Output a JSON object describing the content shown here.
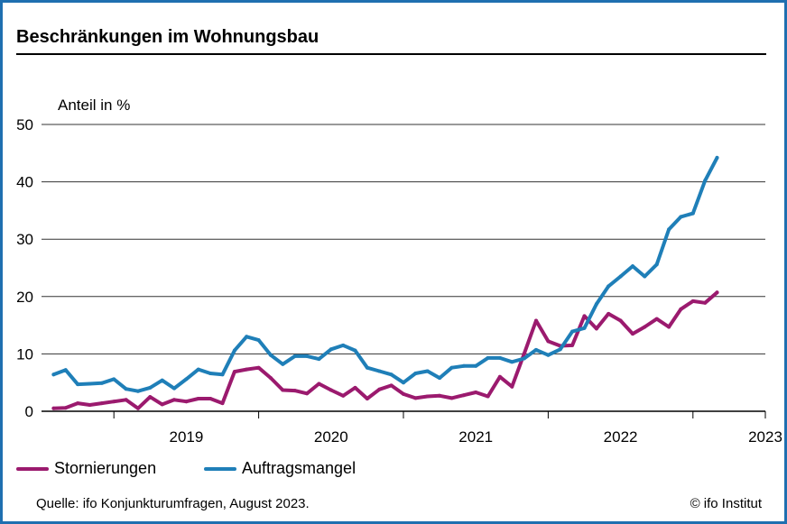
{
  "header": {
    "title": "Beschränkungen im Wohnungsbau"
  },
  "footer": {
    "source": "Quelle: ifo Konjunkturumfragen, August 2023.",
    "credit": "© ifo Institut"
  },
  "colors": {
    "Stornierungen": "#9b1a6e",
    "Auftragsmangel": "#1f7fb8",
    "frame": "#1f6fb0"
  },
  "chart_data": {
    "type": "line",
    "title": "Beschränkungen im Wohnungsbau",
    "ylabel": "Anteil in %",
    "ylim": [
      0,
      50
    ],
    "yticks": [
      "0",
      "10",
      "20",
      "30",
      "40",
      "50"
    ],
    "xlim": [
      "2018-07",
      "2023-07"
    ],
    "xticks": [
      "2019",
      "2020",
      "2021",
      "2022",
      "2023"
    ],
    "grid": true,
    "legend": "bottom-left",
    "x": [
      "2018-08",
      "2018-09",
      "2018-10",
      "2018-11",
      "2018-12",
      "2019-01",
      "2019-02",
      "2019-03",
      "2019-04",
      "2019-05",
      "2019-06",
      "2019-07",
      "2019-08",
      "2019-09",
      "2019-10",
      "2019-11",
      "2019-12",
      "2020-01",
      "2020-02",
      "2020-03",
      "2020-04",
      "2020-05",
      "2020-06",
      "2020-07",
      "2020-08",
      "2020-09",
      "2020-10",
      "2020-11",
      "2020-12",
      "2021-01",
      "2021-02",
      "2021-03",
      "2021-04",
      "2021-05",
      "2021-06",
      "2021-07",
      "2021-08",
      "2021-09",
      "2021-10",
      "2021-11",
      "2021-12",
      "2022-01",
      "2022-02",
      "2022-03",
      "2022-04",
      "2022-05",
      "2022-06",
      "2022-07",
      "2022-08",
      "2022-09",
      "2022-10",
      "2022-11",
      "2022-12",
      "2023-01",
      "2023-02",
      "2023-03",
      "2023-04",
      "2023-05",
      "2023-06",
      "2023-07"
    ],
    "series": [
      {
        "name": "Stornierungen",
        "values": [
          0.5,
          0.6,
          1.4,
          1.1,
          1.4,
          1.7,
          2.0,
          0.5,
          2.5,
          1.2,
          2.0,
          1.7,
          2.2,
          2.2,
          1.4,
          6.9,
          7.3,
          7.6,
          5.8,
          3.7,
          3.6,
          3.1,
          4.8,
          3.7,
          2.7,
          4.1,
          2.2,
          3.8,
          4.5,
          3.0,
          2.3,
          2.6,
          2.7,
          2.3,
          2.8,
          3.3,
          2.6,
          6.0,
          4.3,
          10.0,
          15.8,
          12.2,
          11.4,
          11.5,
          16.6,
          14.4,
          17.0,
          15.8,
          13.5,
          14.7,
          16.1,
          14.7,
          17.8,
          19.2,
          18.9,
          20.7,
          null,
          null,
          null,
          null
        ]
      },
      {
        "name": "Auftragsmangel",
        "values": [
          6.4,
          7.2,
          4.7,
          4.8,
          4.9,
          5.6,
          3.9,
          3.5,
          4.1,
          5.4,
          4.0,
          5.6,
          7.3,
          6.6,
          6.4,
          10.6,
          13.0,
          12.4,
          9.8,
          8.2,
          9.6,
          9.6,
          9.1,
          10.8,
          11.5,
          10.6,
          7.6,
          7.0,
          6.4,
          5.0,
          6.6,
          7.0,
          5.8,
          7.6,
          7.9,
          7.9,
          9.3,
          9.3,
          8.6,
          9.2,
          10.7,
          9.8,
          10.8,
          13.9,
          14.5,
          18.7,
          21.8,
          23.5,
          25.3,
          23.5,
          25.6,
          31.7,
          33.9,
          34.5,
          40.2,
          44.2,
          null,
          null,
          null,
          null
        ]
      }
    ]
  }
}
